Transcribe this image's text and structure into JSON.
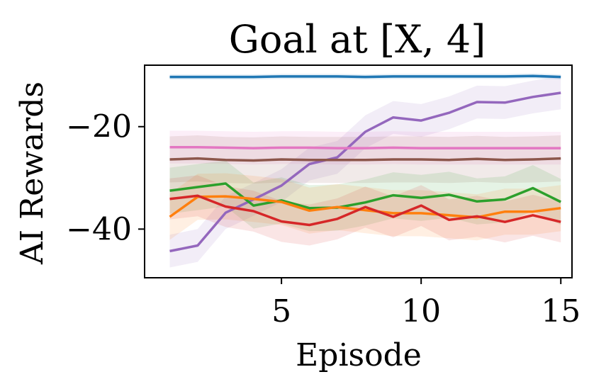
{
  "chart_data": {
    "type": "line",
    "title": "Goal at [X, 4]",
    "xlabel": "Episode",
    "ylabel": "AI Rewards",
    "xlim": [
      0.1,
      15.4
    ],
    "ylim": [
      -49.5,
      -8.0
    ],
    "xticks": [
      5,
      10,
      15
    ],
    "yticks": [
      -20,
      -40
    ],
    "ytick_labels": [
      "−20",
      "−40"
    ],
    "grid": false,
    "legend": "none",
    "x": [
      1,
      2,
      3,
      4,
      5,
      6,
      7,
      8,
      9,
      10,
      11,
      12,
      13,
      14,
      15
    ],
    "series": [
      {
        "color": "#1f77b4",
        "values": [
          -10.3,
          -10.3,
          -10.3,
          -10.3,
          -10.2,
          -10.2,
          -10.2,
          -10.3,
          -10.2,
          -10.2,
          -10.2,
          -10.2,
          -10.2,
          -10.1,
          -10.3
        ],
        "band": 0.5
      },
      {
        "color": "#9467bd",
        "values": [
          -44.3,
          -43.2,
          -36.8,
          -34.2,
          -31.5,
          -27.3,
          -26.0,
          -21.0,
          -18.2,
          -18.8,
          -17.3,
          -15.2,
          -15.3,
          -14.2,
          -13.4
        ],
        "band": 3.2
      },
      {
        "color": "#e377c2",
        "values": [
          -24.0,
          -24.0,
          -24.1,
          -24.2,
          -24.1,
          -24.1,
          -24.2,
          -24.2,
          -24.1,
          -24.2,
          -24.2,
          -24.2,
          -24.2,
          -24.2,
          -24.2
        ],
        "band": 3.2
      },
      {
        "color": "#8c564b",
        "values": [
          -26.4,
          -26.2,
          -26.5,
          -26.6,
          -26.4,
          -26.5,
          -26.5,
          -26.5,
          -26.4,
          -26.4,
          -26.5,
          -26.3,
          -26.5,
          -26.4,
          -26.2
        ],
        "band": 4.5
      },
      {
        "color": "#2ca02c",
        "values": [
          -32.5,
          -31.8,
          -31.1,
          -35.4,
          -34.4,
          -35.9,
          -35.8,
          -34.8,
          -33.4,
          -33.9,
          -33.3,
          -34.6,
          -34.2,
          -32.0,
          -34.7
        ],
        "band": 4.5
      },
      {
        "color": "#ff7f0e",
        "values": [
          -37.6,
          -33.7,
          -33.6,
          -34.1,
          -34.7,
          -36.4,
          -35.7,
          -36.3,
          -36.9,
          -36.9,
          -37.3,
          -37.7,
          -36.6,
          -36.6,
          -35.9
        ],
        "band": 4.5
      },
      {
        "color": "#d62728",
        "values": [
          -34.1,
          -33.5,
          -35.6,
          -36.5,
          -38.5,
          -39.2,
          -38.0,
          -35.7,
          -37.6,
          -35.4,
          -38.2,
          -37.5,
          -38.6,
          -37.3,
          -38.6
        ],
        "band": 4.0
      }
    ]
  }
}
